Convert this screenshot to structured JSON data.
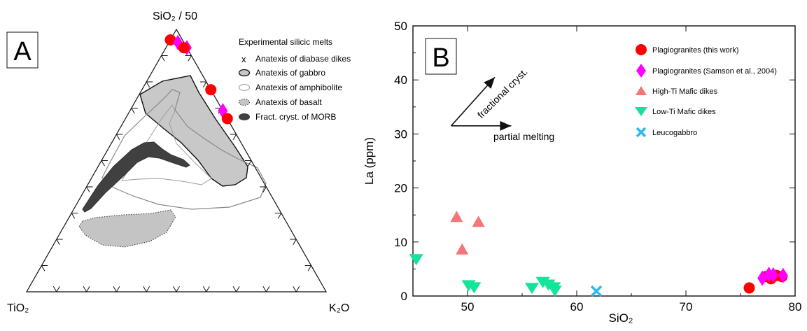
{
  "chart_data": [
    {
      "panel": "A",
      "type": "ternary",
      "vertices": {
        "top": "SiO₂ / 50",
        "left": "TiO₂",
        "right": "K₂O"
      },
      "legend_title": "Experimental silicic melts",
      "legend_placement": "top-right",
      "legend": [
        {
          "symbol": "x",
          "label": "Anatexis of diabase dikes"
        },
        {
          "symbol": "field-gray",
          "label": "Anatexis of gabbro"
        },
        {
          "symbol": "field-outline",
          "label": "Anatexis of amphibolite"
        },
        {
          "symbol": "field-dotted",
          "label": "Anatexis of basalt"
        },
        {
          "symbol": "field-dark",
          "label": "Fract. cryst. of MORB"
        }
      ],
      "points": [
        {
          "series": "Plagiogranites (this work)",
          "marker": "circle",
          "color": "#ff0000",
          "TiO2": 0.04,
          "SiO2_50": 0.96,
          "K2O": 0.0
        },
        {
          "series": "Plagiogranites (Samson et al., 2004)",
          "marker": "diamond",
          "color": "#ff00ff",
          "TiO2": 0.02,
          "SiO2_50": 0.95,
          "K2O": 0.03
        },
        {
          "series": "Plagiogranites (Samson et al., 2004)",
          "marker": "diamond",
          "color": "#ff00ff",
          "TiO2": 0.0,
          "SiO2_50": 0.93,
          "K2O": 0.07
        },
        {
          "series": "Plagiogranites (this work)",
          "marker": "circle",
          "color": "#ff0000",
          "TiO2": 0.01,
          "SiO2_50": 0.93,
          "K2O": 0.06
        },
        {
          "series": "Plagiogranites (this work)",
          "marker": "circle",
          "color": "#ff0000",
          "TiO2": 0.0,
          "SiO2_50": 0.77,
          "K2O": 0.23
        },
        {
          "series": "Plagiogranites (Samson et al., 2004)",
          "marker": "diamond",
          "color": "#ff00ff",
          "TiO2": 0.0,
          "SiO2_50": 0.69,
          "K2O": 0.31
        },
        {
          "series": "Plagiogranites (this work)",
          "marker": "circle",
          "color": "#ff0000",
          "TiO2": 0.0,
          "SiO2_50": 0.66,
          "K2O": 0.34
        }
      ]
    },
    {
      "panel": "B",
      "type": "scatter",
      "xlabel": "SiO₂",
      "ylabel": "La (ppm)",
      "xlim": [
        45,
        80
      ],
      "ylim": [
        0,
        50
      ],
      "xticks": [
        50,
        60,
        70,
        80
      ],
      "yticks": [
        0,
        10,
        20,
        30,
        40,
        50
      ],
      "grid": false,
      "legend_placement": "top-right",
      "arrows": [
        {
          "label": "fractional cryst.",
          "from": [
            48.5,
            31.5
          ],
          "to": [
            52.5,
            40.5
          ]
        },
        {
          "label": "partial melting",
          "from": [
            48.5,
            31.5
          ],
          "to": [
            54.0,
            31.5
          ]
        }
      ],
      "series": [
        {
          "name": "Plagiogranites (this work)",
          "marker": "circle",
          "color": "#ff0000",
          "points": [
            [
              75.8,
              1.5
            ],
            [
              77.3,
              3.6
            ],
            [
              77.8,
              3.2
            ],
            [
              78.3,
              3.8
            ],
            [
              78.8,
              3.6
            ]
          ]
        },
        {
          "name": "Plagiogranites (Samson et al., 2004)",
          "marker": "diamond",
          "color": "#ff00ff",
          "points": [
            [
              77.0,
              3.3
            ],
            [
              77.6,
              4.0
            ],
            [
              78.0,
              3.9
            ],
            [
              78.9,
              3.8
            ]
          ]
        },
        {
          "name": "High-Ti Mafic dikes",
          "marker": "triangle-up",
          "color": "#f47676",
          "points": [
            [
              49.0,
              14.6
            ],
            [
              51.0,
              13.7
            ],
            [
              49.5,
              8.6
            ]
          ]
        },
        {
          "name": "Low-Ti Mafic dikes",
          "marker": "triangle-down",
          "color": "#14e39a",
          "points": [
            [
              45.3,
              6.7
            ],
            [
              50.1,
              1.9
            ],
            [
              50.6,
              1.5
            ],
            [
              55.9,
              1.4
            ],
            [
              56.9,
              2.5
            ],
            [
              57.4,
              2.0
            ],
            [
              57.9,
              1.5
            ],
            [
              58.0,
              0.9
            ]
          ]
        },
        {
          "name": "Leucogabbro",
          "marker": "x",
          "color": "#29b8f0",
          "points": [
            [
              61.8,
              0.9
            ]
          ]
        }
      ]
    }
  ],
  "panel_labels": {
    "a": "A",
    "b": "B"
  }
}
